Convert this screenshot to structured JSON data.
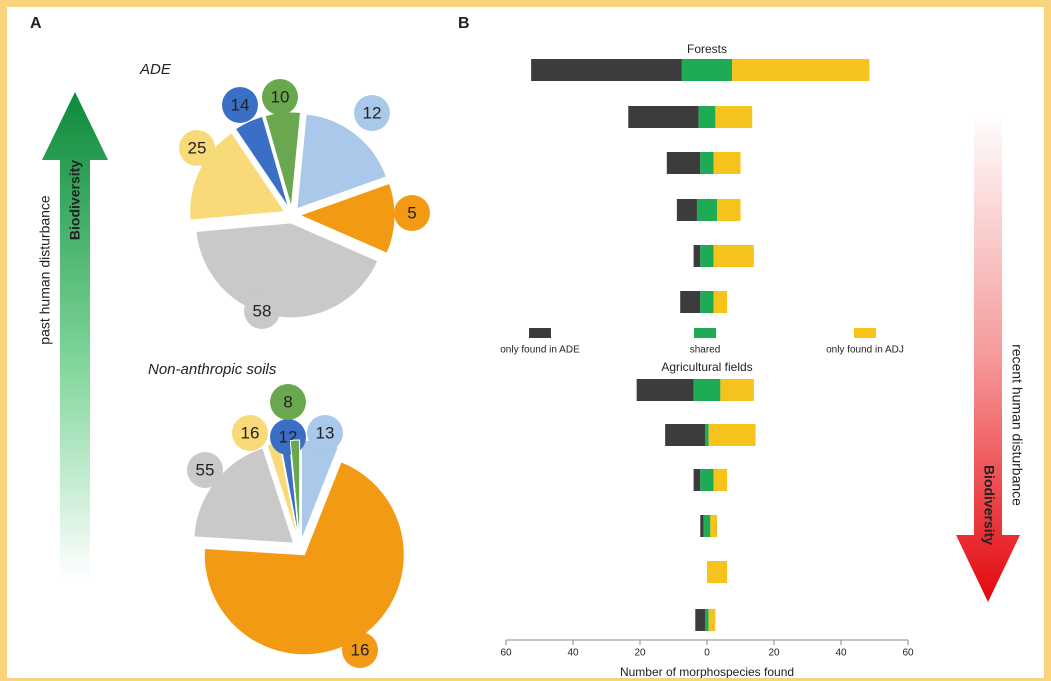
{
  "chart_data": [
    {
      "type": "pie",
      "panel": "A",
      "title": "ADE",
      "arrow_labels": [
        "past human disturbance",
        "Biodiversity"
      ],
      "colors": [
        "#6aa84f",
        "#a9c8ea",
        "#f39a14",
        "#c9c9c9",
        "#f8db78",
        "#3b6fc6"
      ],
      "values": [
        6,
        18,
        12,
        42,
        17,
        5
      ],
      "morphospecies": [
        10,
        12,
        5,
        58,
        25,
        14
      ]
    },
    {
      "type": "pie",
      "title": "Non-anthropic  soils",
      "colors": [
        "#a9c8ea",
        "#f39a14",
        "#c9c9c9",
        "#f8db78",
        "#3b6fc6",
        "#6aa84f"
      ],
      "values": [
        6,
        70,
        19,
        2,
        1.5,
        1.5
      ],
      "morphospecies": [
        13,
        16,
        55,
        16,
        12,
        8
      ]
    },
    {
      "type": "diverging_bar",
      "panel": "B",
      "title": "Forests",
      "arrow_labels": [
        "recent human disturbance",
        "Biodiversity"
      ],
      "xlim": [
        -60,
        60
      ],
      "series": [
        {
          "name": "only found in ADE",
          "color": "#3c3c3c",
          "values": [
            45,
            21,
            10,
            6,
            2,
            6
          ]
        },
        {
          "name": "shared",
          "color": "#1faa55",
          "values": [
            15,
            5,
            4,
            6,
            4,
            4
          ]
        },
        {
          "name": "only found in ADJ",
          "color": "#f6c21c",
          "values": [
            41,
            11,
            8,
            7,
            12,
            4
          ]
        }
      ]
    },
    {
      "type": "diverging_bar",
      "title": "Agricultural fields",
      "xlim": [
        -60,
        60
      ],
      "xticks": [
        {
          "value": -60,
          "label": "60"
        },
        {
          "value": -40,
          "label": "40"
        },
        {
          "value": -20,
          "label": "20"
        },
        0,
        20,
        40,
        60
      ],
      "xlabel": "Number of morphospecies found",
      "series": [
        {
          "color": "#3c3c3c",
          "values": [
            17,
            12,
            2,
            1,
            0,
            3
          ]
        },
        {
          "color": "#1faa55",
          "values": [
            8,
            1,
            4,
            2,
            0,
            1
          ]
        },
        {
          "color": "#f6c21c",
          "values": [
            10,
            14,
            4,
            2,
            6,
            2
          ]
        }
      ]
    }
  ]
}
